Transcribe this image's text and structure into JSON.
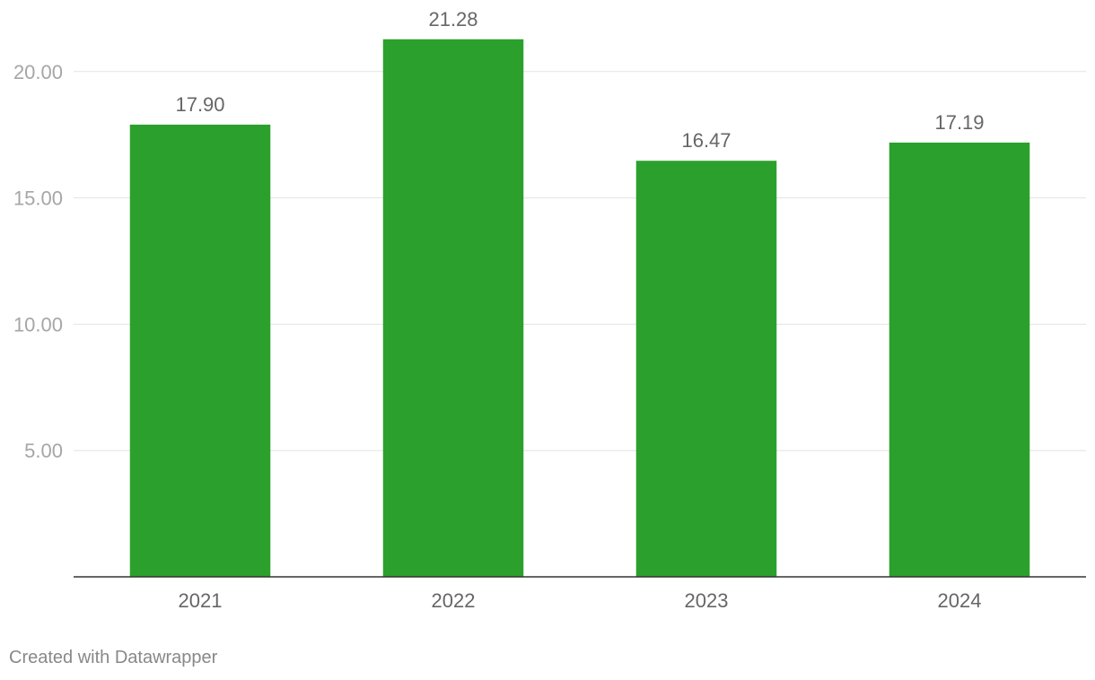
{
  "chart_data": {
    "type": "bar",
    "categories": [
      "2021",
      "2022",
      "2023",
      "2024"
    ],
    "values": [
      17.9,
      21.28,
      16.47,
      17.19
    ],
    "value_labels": [
      "17.90",
      "21.28",
      "16.47",
      "17.19"
    ],
    "title": "",
    "xlabel": "",
    "ylabel": "",
    "ylim": [
      0,
      22.86
    ],
    "yticks": [
      5,
      10,
      15,
      20
    ],
    "ytick_labels": [
      "5.00",
      "10.00",
      "15.00",
      "20.00"
    ],
    "bar_color": "#2ca02c",
    "grid": true,
    "legend": "none"
  },
  "footer": {
    "credit": "Created with Datawrapper"
  }
}
